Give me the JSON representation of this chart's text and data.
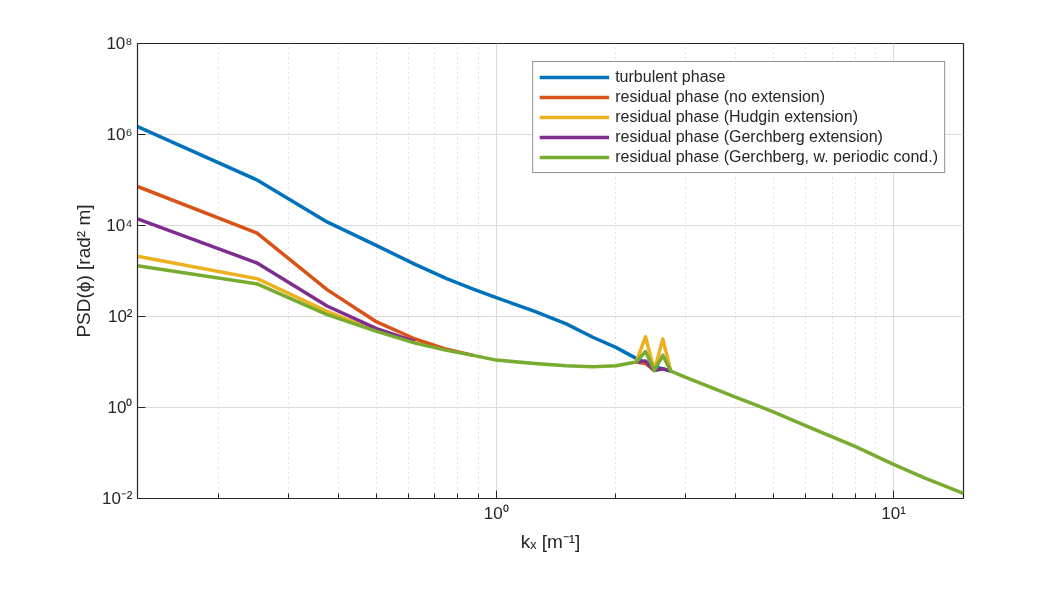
{
  "chart_data": {
    "type": "line",
    "xlabel": "kₓ [m⁻¹]",
    "ylabel": "PSD(ϕ) [rad² m]",
    "log": "xy",
    "grid": true,
    "legend": "top right",
    "line_style": "solid",
    "xlim": [
      0.125,
      15
    ],
    "ylim": [
      0.01,
      100000000.0
    ],
    "xticks": [
      {
        "value": 1,
        "label": "10⁰"
      },
      {
        "value": 10,
        "label": "10¹"
      }
    ],
    "yticks": [
      {
        "value": 0.01,
        "label": "10⁻²"
      },
      {
        "value": 1,
        "label": "10⁰"
      },
      {
        "value": 100,
        "label": "10²"
      },
      {
        "value": 10000,
        "label": "10⁴"
      },
      {
        "value": 1000000,
        "label": "10⁶"
      },
      {
        "value": 100000000,
        "label": "10⁸"
      }
    ],
    "x": [
      0.125,
      0.25,
      0.375,
      0.5,
      0.625,
      0.75,
      0.875,
      1.0,
      1.25,
      1.5,
      1.75,
      2.0,
      2.25,
      2.375,
      2.5,
      2.625,
      2.75,
      3.0,
      4.0,
      5.0,
      6.0,
      8.0,
      10.0,
      12.0,
      15.0
    ],
    "series": [
      {
        "name": "turbulent phase",
        "color": "#0072bd",
        "values": [
          1500000,
          100000,
          12000,
          3600,
          1400,
          680,
          400,
          260,
          130,
          69,
          35,
          21,
          12,
          9.8,
          7.8,
          7.1,
          6.3,
          null,
          null,
          null,
          null,
          null,
          null,
          null,
          null
        ]
      },
      {
        "name": "residual phase (no extension)",
        "color": "#d95319",
        "values": [
          72000,
          6800,
          390,
          76,
          32,
          19,
          14,
          null,
          null,
          null,
          null,
          null,
          10,
          9.3,
          6.5,
          null,
          null,
          null,
          null,
          null,
          null,
          null,
          null,
          null,
          null
        ]
      },
      {
        "name": "residual phase (Hudgin extension)",
        "color": "#edb120",
        "values": [
          2100,
          680,
          130,
          48,
          null,
          null,
          null,
          null,
          null,
          null,
          null,
          null,
          10,
          36,
          6.5,
          32,
          6.3,
          null,
          null,
          null,
          null,
          null,
          null,
          null,
          null
        ]
      },
      {
        "name": "residual phase (Gerchberg extension)",
        "color": "#7e2f8e",
        "values": [
          14000,
          1500,
          170,
          54,
          28,
          null,
          null,
          null,
          null,
          null,
          null,
          null,
          10,
          10.5,
          6.5,
          7.1,
          6.3,
          null,
          null,
          null,
          null,
          null,
          null,
          null,
          null
        ]
      },
      {
        "name": "residual phase (Gerchberg, w. periodic cond.)",
        "color": "#77ac30",
        "values": [
          1300,
          520,
          110,
          47,
          26,
          18,
          14,
          11,
          9.3,
          8.3,
          7.9,
          8.3,
          10,
          17,
          6.5,
          14,
          6.3,
          4.6,
          1.7,
          0.79,
          0.4,
          0.14,
          0.056,
          0.028,
          0.013
        ]
      }
    ]
  }
}
